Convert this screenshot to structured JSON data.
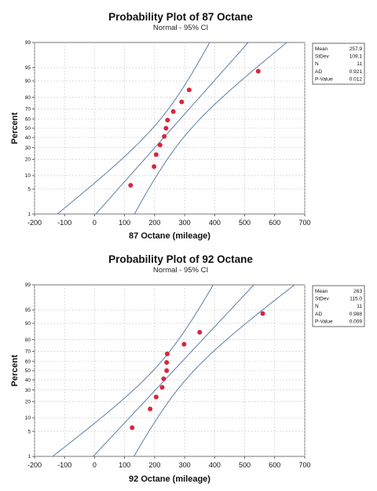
{
  "chart_data": [
    {
      "type": "scatter",
      "title": "Probability Plot of 87 Octane",
      "subtitle": "Normal - 95% CI",
      "xlabel": "87 Octane (mileage)",
      "ylabel": "Percent",
      "xlim": [
        -200,
        700
      ],
      "xticks": [
        "-200",
        "-100",
        "0",
        "100",
        "200",
        "300",
        "400",
        "500",
        "600",
        "700"
      ],
      "yticks": [
        "1",
        "5",
        "10",
        "20",
        "30",
        "40",
        "50",
        "60",
        "70",
        "80",
        "90",
        "95",
        "99"
      ],
      "ytick_values": [
        1,
        5,
        10,
        20,
        30,
        40,
        50,
        60,
        70,
        80,
        90,
        95,
        99
      ],
      "y_scale": "normal probability",
      "grid": true,
      "mean": 257.9,
      "stdev": 109.1,
      "points": [
        {
          "x": 120,
          "y": 6.1
        },
        {
          "x": 198,
          "y": 14.9
        },
        {
          "x": 205,
          "y": 23.7
        },
        {
          "x": 218,
          "y": 32.5
        },
        {
          "x": 232,
          "y": 41.2
        },
        {
          "x": 238,
          "y": 50
        },
        {
          "x": 243,
          "y": 58.8
        },
        {
          "x": 262,
          "y": 67.5
        },
        {
          "x": 290,
          "y": 76.3
        },
        {
          "x": 315,
          "y": 85.1
        },
        {
          "x": 545,
          "y": 93.9
        }
      ],
      "stats": [
        {
          "label": "Mean",
          "value": "257.9"
        },
        {
          "label": "StDev",
          "value": "109.1"
        },
        {
          "label": "N",
          "value": "11"
        },
        {
          "label": "AD",
          "value": "0.921"
        },
        {
          "label": "P-Value",
          "value": "0.012"
        }
      ],
      "legend_position": "right"
    },
    {
      "type": "scatter",
      "title": "Probability Plot of 92 Octane",
      "subtitle": "Normal - 95% CI",
      "xlabel": "92 Octane (mileage)",
      "ylabel": "Percent",
      "xlim": [
        -200,
        700
      ],
      "xticks": [
        "-200",
        "-100",
        "0",
        "100",
        "200",
        "300",
        "400",
        "500",
        "600",
        "700"
      ],
      "yticks": [
        "1",
        "5",
        "10",
        "20",
        "30",
        "40",
        "50",
        "60",
        "70",
        "80",
        "90",
        "95",
        "99"
      ],
      "ytick_values": [
        1,
        5,
        10,
        20,
        30,
        40,
        50,
        60,
        70,
        80,
        90,
        95,
        99
      ],
      "y_scale": "normal probability",
      "grid": true,
      "mean": 263,
      "stdev": 115.0,
      "points": [
        {
          "x": 125,
          "y": 6.1
        },
        {
          "x": 185,
          "y": 14.9
        },
        {
          "x": 205,
          "y": 23.7
        },
        {
          "x": 225,
          "y": 32.5
        },
        {
          "x": 230,
          "y": 41.2
        },
        {
          "x": 240,
          "y": 50
        },
        {
          "x": 240,
          "y": 58.8
        },
        {
          "x": 242,
          "y": 67.5
        },
        {
          "x": 298,
          "y": 76.3
        },
        {
          "x": 350,
          "y": 85.1
        },
        {
          "x": 560,
          "y": 93.9
        }
      ],
      "stats": [
        {
          "label": "Mean",
          "value": "263"
        },
        {
          "label": "StDev",
          "value": "115.0"
        },
        {
          "label": "N",
          "value": "11"
        },
        {
          "label": "AD",
          "value": "0.988"
        },
        {
          "label": "P-Value",
          "value": "0.009"
        }
      ],
      "legend_position": "right"
    }
  ]
}
